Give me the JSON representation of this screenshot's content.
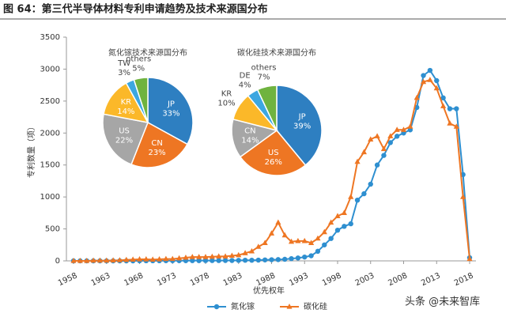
{
  "title": "图 64：第三代半导体材料专利申请趋势及技术来源国分布",
  "watermark": "头条 @未来智库",
  "chart_data": [
    {
      "type": "line",
      "x_label": "优先权年",
      "y_label": "专利数量（项）",
      "x": [
        1958,
        1959,
        1960,
        1961,
        1962,
        1963,
        1964,
        1965,
        1966,
        1967,
        1968,
        1969,
        1970,
        1971,
        1972,
        1973,
        1974,
        1975,
        1976,
        1977,
        1978,
        1979,
        1980,
        1981,
        1982,
        1983,
        1984,
        1985,
        1986,
        1987,
        1988,
        1989,
        1990,
        1991,
        1992,
        1993,
        1994,
        1995,
        1996,
        1997,
        1998,
        1999,
        2000,
        2001,
        2002,
        2003,
        2004,
        2005,
        2006,
        2007,
        2008,
        2009,
        2010,
        2011,
        2012,
        2013,
        2014,
        2015,
        2016,
        2017,
        2018
      ],
      "xlim": [
        1958,
        2018
      ],
      "xticks": [
        1958,
        1963,
        1968,
        1973,
        1978,
        1983,
        1988,
        1993,
        1998,
        2003,
        2008,
        2013,
        2018
      ],
      "ylim": [
        0,
        3500
      ],
      "yticks": [
        0,
        500,
        1000,
        1500,
        2000,
        2500,
        3000,
        3500
      ],
      "legend": "bottom",
      "series": [
        {
          "name": "氮化镓",
          "color": "#2e8fd0",
          "marker": "circle",
          "values": [
            0,
            0,
            0,
            0,
            0,
            0,
            0,
            0,
            0,
            0,
            2,
            2,
            2,
            2,
            3,
            3,
            3,
            3,
            4,
            4,
            5,
            5,
            5,
            6,
            6,
            8,
            10,
            10,
            12,
            15,
            18,
            20,
            25,
            35,
            45,
            60,
            80,
            150,
            250,
            350,
            480,
            540,
            580,
            950,
            1050,
            1200,
            1500,
            1650,
            1850,
            1950,
            2000,
            2050,
            2400,
            2900,
            2980,
            2820,
            2550,
            2380,
            2380,
            1350,
            50
          ]
        },
        {
          "name": "碳化硅",
          "color": "#ee7623",
          "marker": "triangle",
          "values": [
            0,
            0,
            0,
            5,
            5,
            5,
            8,
            10,
            15,
            20,
            25,
            25,
            20,
            25,
            30,
            30,
            40,
            50,
            60,
            60,
            60,
            65,
            70,
            70,
            80,
            90,
            120,
            150,
            220,
            280,
            430,
            600,
            400,
            300,
            310,
            310,
            280,
            350,
            450,
            600,
            700,
            750,
            1000,
            1550,
            1700,
            1900,
            1950,
            1750,
            1950,
            2050,
            2050,
            2100,
            2550,
            2800,
            2830,
            2700,
            2420,
            2150,
            2100,
            1000,
            30
          ]
        }
      ]
    },
    {
      "type": "pie",
      "title": "氮化镓技术来源国分布",
      "categories": [
        "JP",
        "CN",
        "US",
        "KR",
        "TW",
        "others"
      ],
      "values": [
        33,
        23,
        22,
        14,
        3,
        5
      ],
      "value_labels": [
        "33%",
        "23%",
        "22%",
        "14%",
        "3%",
        "5%"
      ],
      "colors": [
        "#2e7fc1",
        "#ee7623",
        "#a6a6a6",
        "#fbb829",
        "#3ca7e0",
        "#6fb33f"
      ]
    },
    {
      "type": "pie",
      "title": "碳化硅技术来源国分布",
      "categories": [
        "JP",
        "US",
        "CN",
        "KR",
        "DE",
        "others"
      ],
      "values": [
        39,
        26,
        14,
        10,
        4,
        7
      ],
      "value_labels": [
        "39%",
        "26%",
        "14%",
        "10%",
        "4%",
        "7%"
      ],
      "colors": [
        "#2e7fc1",
        "#ee7623",
        "#a6a6a6",
        "#fbb829",
        "#3ca7e0",
        "#6fb33f"
      ]
    }
  ]
}
